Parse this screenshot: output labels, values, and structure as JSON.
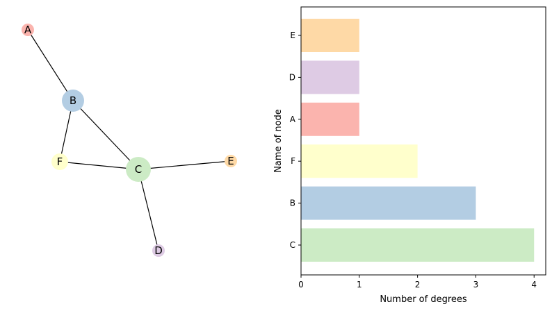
{
  "graph": {
    "nodes": [
      {
        "id": "A",
        "degree": 1,
        "color": "#FBB4AE"
      },
      {
        "id": "B",
        "degree": 3,
        "color": "#B3CDE3"
      },
      {
        "id": "C",
        "degree": 4,
        "color": "#CCEBC5"
      },
      {
        "id": "D",
        "degree": 1,
        "color": "#DECBE4"
      },
      {
        "id": "E",
        "degree": 1,
        "color": "#FED9A6"
      },
      {
        "id": "F",
        "degree": 2,
        "color": "#FFFFCC"
      }
    ],
    "edges": [
      [
        "A",
        "B"
      ],
      [
        "B",
        "F"
      ],
      [
        "B",
        "C"
      ],
      [
        "F",
        "C"
      ],
      [
        "C",
        "E"
      ],
      [
        "C",
        "D"
      ]
    ]
  },
  "chart_data": {
    "type": "bar",
    "orientation": "horizontal",
    "categories": [
      "C",
      "B",
      "F",
      "A",
      "D",
      "E"
    ],
    "values": [
      4,
      3,
      2,
      1,
      1,
      1
    ],
    "colors": [
      "#CCEBC5",
      "#B3CDE3",
      "#FFFFCC",
      "#FBB4AE",
      "#DECBE4",
      "#FED9A6"
    ],
    "xlabel": "Number of degrees",
    "ylabel": "Name of node",
    "xlim": [
      0,
      4.2
    ],
    "xticks": [
      "0",
      "1",
      "2",
      "3",
      "4"
    ],
    "grid": false
  }
}
